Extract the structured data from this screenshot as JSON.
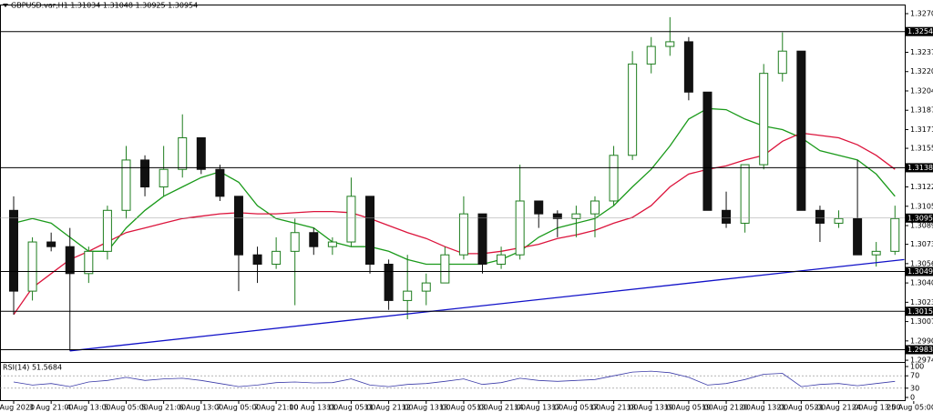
{
  "chart_data": {
    "type": "candlestick",
    "title": "GBPUSD.var,H1  1.31034 1.31048 1.30925 1.30954",
    "categories": [
      "3 Aug 2020",
      null,
      "3 Aug 21:00",
      null,
      "4 Aug 13:00",
      null,
      "5 Aug 05:00",
      null,
      "5 Aug 21:00",
      null,
      "6 Aug 13:00",
      null,
      "7 Aug 05:00",
      null,
      "7 Aug 21:00",
      null,
      "10 Aug 13:00",
      null,
      "11 Aug 05:00",
      null,
      "11 Aug 21:00",
      null,
      "12 Aug 13:00",
      null,
      "13 Aug 05:00",
      null,
      "13 Aug 21:00",
      null,
      "14 Aug 13:00",
      null,
      "17 Aug 05:00",
      null,
      "17 Aug 21:00",
      null,
      "18 Aug 13:00",
      null,
      "19 Aug 05:00",
      null,
      "19 Aug 21:00",
      null,
      "20 Aug 13:00",
      null,
      "21 Aug 05:00",
      null,
      "21 Aug 21:00",
      null,
      "24 Aug 13:00",
      null,
      "25 Aug 05:00"
    ],
    "open": [
      1.3102,
      1.3033,
      1.3075,
      1.3071,
      1.3048,
      1.3067,
      1.3102,
      1.3145,
      1.3122,
      1.3137,
      1.3164,
      1.3137,
      1.3114,
      1.3064,
      1.3056,
      1.3067,
      1.3083,
      1.3071,
      1.3075,
      1.3114,
      1.3056,
      1.3025,
      1.3033,
      1.304,
      1.3064,
      1.3099,
      1.3056,
      1.3064,
      1.311,
      1.3099,
      1.3095,
      1.3099,
      1.311,
      1.3149,
      1.3227,
      1.3242,
      1.3246,
      1.3203,
      1.3102,
      1.3091,
      1.3141,
      1.3219,
      1.3238,
      1.3102,
      1.3091,
      1.3095,
      1.3064,
      1.3067,
      null
    ],
    "high": [
      1.3114,
      1.3079,
      1.3083,
      1.3087,
      1.3071,
      1.3106,
      1.3157,
      1.3149,
      1.3157,
      1.3184,
      1.3164,
      1.3141,
      1.3114,
      1.3071,
      1.3079,
      1.3095,
      1.3087,
      1.3079,
      1.313,
      1.3114,
      1.306,
      1.3064,
      1.3048,
      1.3071,
      1.3114,
      1.3099,
      1.3071,
      1.3141,
      1.311,
      1.3102,
      1.3106,
      1.3114,
      1.3157,
      1.3238,
      1.325,
      1.3267,
      1.325,
      1.3203,
      1.3118,
      1.3141,
      1.3227,
      1.3254,
      1.3238,
      1.3106,
      1.3102,
      1.3145,
      1.3075,
      1.3106,
      null
    ],
    "low": [
      1.3013,
      1.3025,
      1.3067,
      1.2982,
      1.304,
      1.306,
      1.3095,
      1.3114,
      1.3114,
      1.313,
      1.3133,
      1.311,
      1.3033,
      1.304,
      1.3052,
      1.3021,
      1.3064,
      1.3064,
      1.3071,
      1.3048,
      1.3017,
      1.3009,
      1.3021,
      1.304,
      1.306,
      1.3048,
      1.3052,
      1.306,
      1.3087,
      1.3079,
      1.3079,
      1.3079,
      1.3106,
      1.3145,
      1.3219,
      1.3234,
      1.3196,
      1.3102,
      1.3087,
      1.3083,
      1.3137,
      1.3212,
      1.3102,
      1.3075,
      1.3087,
      1.3064,
      1.3054,
      1.3064,
      null
    ],
    "close": [
      1.3033,
      1.3075,
      1.3071,
      1.3048,
      1.3067,
      1.3102,
      1.3145,
      1.3122,
      1.3137,
      1.3164,
      1.3137,
      1.3114,
      1.3064,
      1.3056,
      1.3067,
      1.3083,
      1.3071,
      1.3075,
      1.3114,
      1.3056,
      1.3025,
      1.3033,
      1.304,
      1.3064,
      1.3099,
      1.3056,
      1.3064,
      1.311,
      1.3099,
      1.3095,
      1.3099,
      1.311,
      1.3149,
      1.3227,
      1.3242,
      1.3246,
      1.3203,
      1.3102,
      1.3091,
      1.3141,
      1.3219,
      1.3238,
      1.3102,
      1.3091,
      1.3095,
      1.3064,
      1.3067,
      1.3095,
      null
    ],
    "up_color": "#1e7d1e",
    "down_color": "#111111",
    "ylim": [
      1.29725,
      1.3277
    ],
    "yticks": [
      {
        "value": 1.327,
        "label": "1.32700"
      },
      {
        "value": 1.3237,
        "label": "1.32370"
      },
      {
        "value": 1.32205,
        "label": "1.32205"
      },
      {
        "value": 1.3204,
        "label": "1.32040"
      },
      {
        "value": 1.31875,
        "label": "1.31875"
      },
      {
        "value": 1.3171,
        "label": "1.31710"
      },
      {
        "value": 1.3155,
        "label": "1.31550"
      },
      {
        "value": 1.3122,
        "label": "1.31220"
      },
      {
        "value": 1.31055,
        "label": "1.31055"
      },
      {
        "value": 1.3089,
        "label": "1.30890"
      },
      {
        "value": 1.3073,
        "label": "1.30730"
      },
      {
        "value": 1.30565,
        "label": "1.30565"
      },
      {
        "value": 1.304,
        "label": "1.30400"
      },
      {
        "value": 1.30235,
        "label": "1.30235"
      },
      {
        "value": 1.3007,
        "label": "1.30070"
      },
      {
        "value": 1.29905,
        "label": "1.29905"
      },
      {
        "value": 1.2974,
        "label": "1.29740"
      }
    ],
    "levels": [
      {
        "value": 1.32547,
        "label": "1.32547"
      },
      {
        "value": 1.31384,
        "label": "1.31384"
      },
      {
        "value": 1.30498,
        "label": "1.30498"
      },
      {
        "value": 1.30158,
        "label": "1.30158"
      },
      {
        "value": 1.2983,
        "label": "1.29830"
      }
    ],
    "level_color": "#000000",
    "current": {
      "value": 1.30954,
      "label": "1.30954"
    },
    "moving_averages": [
      {
        "color": "#1a9a1a",
        "values": [
          1.3091,
          1.3095,
          1.3091,
          1.3079,
          1.3067,
          1.3067,
          1.3087,
          1.3102,
          1.3114,
          1.3122,
          1.313,
          1.3135,
          1.3126,
          1.3106,
          1.3095,
          1.3091,
          1.3087,
          1.3075,
          1.3071,
          1.3071,
          1.3067,
          1.306,
          1.3056,
          1.3056,
          1.3056,
          1.3056,
          1.306,
          1.3067,
          1.3079,
          1.3087,
          1.3091,
          1.3095,
          1.3106,
          1.3122,
          1.3137,
          1.3157,
          1.318,
          1.3189,
          1.3188,
          1.318,
          1.3174,
          1.3171,
          1.3164,
          1.3153,
          1.3149,
          1.3145,
          1.3133,
          1.3114,
          null
        ]
      },
      {
        "color": "#dc143c",
        "values": [
          1.3013,
          1.3036,
          1.3048,
          1.306,
          1.3067,
          1.3075,
          1.3083,
          1.3087,
          1.3091,
          1.3095,
          1.3097,
          1.3099,
          1.31,
          1.3099,
          1.3099,
          1.31,
          1.3101,
          1.3101,
          1.31,
          1.3095,
          1.3089,
          1.3083,
          1.3078,
          1.3071,
          1.3065,
          1.3065,
          1.3067,
          1.307,
          1.3073,
          1.3078,
          1.3081,
          1.3085,
          1.3091,
          1.3096,
          1.3106,
          1.3122,
          1.3133,
          1.3137,
          1.314,
          1.3145,
          1.3149,
          1.3161,
          1.3168,
          1.3166,
          1.3164,
          1.3158,
          1.3149,
          1.3137,
          null
        ]
      }
    ],
    "trendline": {
      "color": "#1010c8",
      "x": [
        3,
        47.5
      ],
      "values": [
        1.2982,
        1.306
      ]
    },
    "rsi": {
      "label": "RSI(14) 51.5684",
      "color": "#3a3aa8",
      "values": [
        50,
        40,
        45,
        35,
        50,
        55,
        65,
        55,
        60,
        62,
        55,
        45,
        35,
        40,
        48,
        50,
        47,
        48,
        60,
        40,
        35,
        42,
        45,
        52,
        60,
        42,
        48,
        62,
        55,
        52,
        55,
        58,
        70,
        82,
        85,
        80,
        65,
        40,
        45,
        58,
        75,
        78,
        35,
        42,
        45,
        38,
        45,
        52,
        null
      ],
      "ylim": [
        0,
        100
      ],
      "yticks": [
        100,
        70,
        30,
        0
      ],
      "dashed": [
        70,
        30
      ]
    }
  }
}
